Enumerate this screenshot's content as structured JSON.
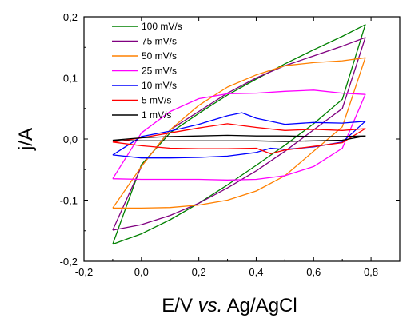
{
  "chart_data": {
    "type": "line",
    "title": "",
    "xlabel": {
      "parts": [
        "E/V ",
        "vs.",
        " Ag/AgCl"
      ]
    },
    "ylabel": "j/A",
    "xlim": [
      -0.2,
      0.9
    ],
    "ylim": [
      -0.2,
      0.2
    ],
    "x_ticks": [
      -0.2,
      0.0,
      0.2,
      0.4,
      0.6,
      0.8
    ],
    "x_tick_labels": [
      "-0,2",
      "0,0",
      "0,2",
      "0,4",
      "0,6",
      "0,8"
    ],
    "y_ticks": [
      -0.2,
      -0.1,
      0.0,
      0.1,
      0.2
    ],
    "y_tick_labels": [
      "-0,2",
      "-0,1",
      "0,0",
      "0,1",
      "0,2"
    ],
    "grid": false,
    "legend_position": "top-left",
    "series": [
      {
        "name": "100 mV/s",
        "color": "#008000",
        "x": [
          -0.1,
          0.0,
          0.1,
          0.2,
          0.3,
          0.4,
          0.5,
          0.6,
          0.7,
          0.78,
          0.7,
          0.6,
          0.5,
          0.4,
          0.3,
          0.2,
          0.1,
          0.0,
          -0.1
        ],
        "y": [
          -0.172,
          -0.155,
          -0.132,
          -0.105,
          -0.075,
          -0.043,
          -0.01,
          0.025,
          0.065,
          0.187,
          0.168,
          0.146,
          0.123,
          0.098,
          0.072,
          0.042,
          0.01,
          -0.042,
          -0.172
        ]
      },
      {
        "name": "75 mV/s",
        "color": "#800080",
        "x": [
          -0.1,
          0.0,
          0.1,
          0.2,
          0.3,
          0.4,
          0.5,
          0.6,
          0.7,
          0.78,
          0.7,
          0.6,
          0.5,
          0.4,
          0.3,
          0.2,
          0.1,
          0.0,
          -0.1
        ],
        "y": [
          -0.149,
          -0.14,
          -0.125,
          -0.105,
          -0.08,
          -0.052,
          -0.02,
          0.015,
          0.05,
          0.166,
          0.152,
          0.136,
          0.12,
          0.1,
          0.075,
          0.045,
          0.015,
          -0.045,
          -0.149
        ]
      },
      {
        "name": "50 mV/s",
        "color": "#FF8000",
        "x": [
          -0.1,
          0.0,
          0.1,
          0.2,
          0.3,
          0.4,
          0.5,
          0.6,
          0.7,
          0.78,
          0.7,
          0.6,
          0.5,
          0.4,
          0.3,
          0.2,
          0.1,
          0.0,
          -0.1
        ],
        "y": [
          -0.113,
          -0.113,
          -0.112,
          -0.108,
          -0.1,
          -0.085,
          -0.06,
          -0.02,
          0.02,
          0.133,
          0.128,
          0.125,
          0.12,
          0.105,
          0.085,
          0.055,
          0.015,
          -0.045,
          -0.113
        ]
      },
      {
        "name": "25 mV/s",
        "color": "#FF00FF",
        "x": [
          -0.1,
          0.0,
          0.1,
          0.2,
          0.3,
          0.4,
          0.5,
          0.6,
          0.7,
          0.78,
          0.7,
          0.6,
          0.5,
          0.4,
          0.3,
          0.2,
          0.1,
          0.0,
          -0.1
        ],
        "y": [
          -0.065,
          -0.066,
          -0.066,
          -0.066,
          -0.067,
          -0.066,
          -0.06,
          -0.045,
          -0.015,
          0.073,
          0.075,
          0.08,
          0.078,
          0.075,
          0.074,
          0.066,
          0.045,
          0.01,
          -0.065
        ]
      },
      {
        "name": "10 mV/s",
        "color": "#0000FF",
        "x": [
          -0.1,
          0.0,
          0.1,
          0.2,
          0.3,
          0.4,
          0.45,
          0.5,
          0.6,
          0.7,
          0.78,
          0.7,
          0.6,
          0.5,
          0.4,
          0.35,
          0.3,
          0.2,
          0.1,
          0.0,
          -0.1
        ],
        "y": [
          -0.026,
          -0.031,
          -0.031,
          -0.03,
          -0.028,
          -0.022,
          -0.015,
          -0.017,
          -0.013,
          -0.005,
          0.029,
          0.026,
          0.027,
          0.024,
          0.034,
          0.043,
          0.038,
          0.024,
          0.013,
          0.004,
          -0.026
        ]
      },
      {
        "name": "5 mV/s",
        "color": "#FF0000",
        "x": [
          -0.1,
          0.0,
          0.1,
          0.2,
          0.3,
          0.4,
          0.45,
          0.5,
          0.6,
          0.7,
          0.78,
          0.7,
          0.6,
          0.5,
          0.4,
          0.3,
          0.2,
          0.1,
          0.0,
          -0.1
        ],
        "y": [
          -0.005,
          -0.011,
          -0.015,
          -0.016,
          -0.016,
          -0.015,
          -0.024,
          -0.018,
          -0.012,
          -0.006,
          0.017,
          0.014,
          0.016,
          0.014,
          0.019,
          0.025,
          0.018,
          0.01,
          0.002,
          -0.005
        ]
      },
      {
        "name": "1 mV/s",
        "color": "#000000",
        "x": [
          -0.1,
          0.0,
          0.1,
          0.2,
          0.3,
          0.4,
          0.5,
          0.6,
          0.7,
          0.78,
          0.7,
          0.6,
          0.5,
          0.4,
          0.3,
          0.2,
          0.1,
          0.0,
          -0.1
        ],
        "y": [
          -0.002,
          -0.003,
          -0.003,
          -0.003,
          -0.003,
          -0.003,
          -0.004,
          -0.003,
          -0.002,
          0.005,
          0.004,
          0.004,
          0.005,
          0.005,
          0.006,
          0.005,
          0.004,
          0.002,
          -0.002
        ]
      }
    ]
  }
}
